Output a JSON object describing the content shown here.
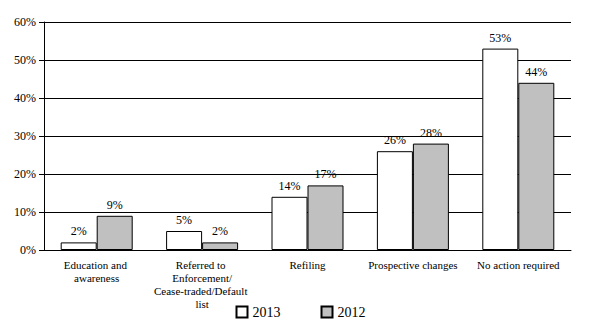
{
  "chart_data": {
    "type": "bar",
    "categories": [
      "Education and awareness",
      "Referred to Enforcement/Cease-traded/Default list",
      "Refiling",
      "Prospective changes",
      "No action required"
    ],
    "series": [
      {
        "name": "2013",
        "color": "#ffffff",
        "values": [
          2,
          5,
          14,
          26,
          53
        ],
        "value_labels": [
          "2%",
          "5%",
          "14%",
          "26%",
          "53%"
        ]
      },
      {
        "name": "2012",
        "color": "#c0c0c0",
        "values": [
          9,
          2,
          17,
          28,
          44
        ],
        "value_labels": [
          "9%",
          "2%",
          "17%",
          "28%",
          "44%"
        ]
      }
    ],
    "ylim": [
      0,
      60
    ],
    "yticks": [
      {
        "value": 0,
        "label": "0%"
      },
      {
        "value": 10,
        "label": "10%"
      },
      {
        "value": 20,
        "label": "20%"
      },
      {
        "value": 30,
        "label": "30%"
      },
      {
        "value": 40,
        "label": "40%"
      },
      {
        "value": 50,
        "label": "50%"
      },
      {
        "value": 60,
        "label": "60%"
      }
    ],
    "grid": true,
    "legend": "bottom",
    "data_labels": true
  }
}
